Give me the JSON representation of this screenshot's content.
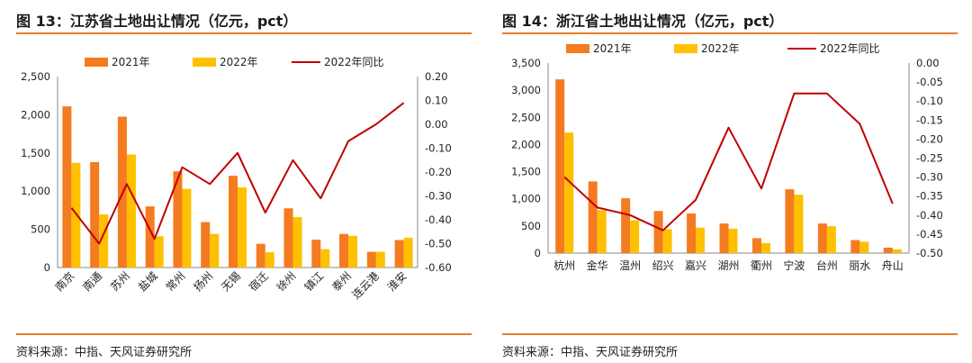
{
  "colors": {
    "series_2021": "#f47b20",
    "series_2022": "#ffc000",
    "yoy_line": "#c00000",
    "accent_rule": "#e87d2a"
  },
  "charts": [
    {
      "title": "图 13：江苏省土地出让情况（亿元，pct）",
      "source": "资料来源：中指、天风证券研究所"
    },
    {
      "title": "图 14：浙江省土地出让情况（亿元，pct）",
      "source": "资料来源：中指、天风证券研究所"
    }
  ],
  "chart_data": [
    {
      "type": "bar",
      "categories": [
        "南京",
        "南通",
        "苏州",
        "盐城",
        "常州",
        "扬州",
        "无锡",
        "宿迁",
        "徐州",
        "镇江",
        "泰州",
        "连云港",
        "淮安"
      ],
      "series": [
        {
          "name": "2021年",
          "type": "bar",
          "axis": "left",
          "values": [
            2110,
            1380,
            1975,
            800,
            1260,
            595,
            1200,
            310,
            775,
            365,
            440,
            205,
            360
          ]
        },
        {
          "name": "2022年",
          "type": "bar",
          "axis": "left",
          "values": [
            1370,
            695,
            1480,
            410,
            1030,
            440,
            1050,
            200,
            660,
            240,
            415,
            205,
            390
          ]
        },
        {
          "name": "2022年同比",
          "type": "line",
          "axis": "right",
          "values": [
            -0.35,
            -0.5,
            -0.25,
            -0.48,
            -0.18,
            -0.25,
            -0.12,
            -0.37,
            -0.15,
            -0.31,
            -0.07,
            0.0,
            0.09
          ]
        }
      ],
      "left_axis": {
        "ylim": [
          0,
          2500
        ],
        "ticks": [
          "0",
          "500",
          "1,000",
          "1,500",
          "2,000",
          "2,500"
        ]
      },
      "right_axis": {
        "ylim": [
          -0.6,
          0.2
        ],
        "ticks": [
          "-0.60",
          "-0.50",
          "-0.40",
          "-0.30",
          "-0.20",
          "-0.10",
          "0.00",
          "0.10",
          "0.20"
        ]
      },
      "legend_position": "top",
      "grid": false
    },
    {
      "type": "bar",
      "categories": [
        "杭州",
        "金华",
        "温州",
        "绍兴",
        "嘉兴",
        "湖州",
        "衢州",
        "宁波",
        "台州",
        "丽水",
        "舟山"
      ],
      "series": [
        {
          "name": "2021年",
          "type": "bar",
          "axis": "left",
          "values": [
            3200,
            1320,
            1010,
            775,
            730,
            545,
            275,
            1175,
            545,
            240,
            100
          ]
        },
        {
          "name": "2022年",
          "type": "bar",
          "axis": "left",
          "values": [
            2220,
            790,
            605,
            440,
            470,
            450,
            185,
            1075,
            495,
            210,
            70
          ]
        },
        {
          "name": "2022年同比",
          "type": "line",
          "axis": "right",
          "values": [
            -0.3,
            -0.38,
            -0.4,
            -0.44,
            -0.36,
            -0.17,
            -0.33,
            -0.08,
            -0.08,
            -0.16,
            -0.37
          ]
        }
      ],
      "left_axis": {
        "ylim": [
          0,
          3500
        ],
        "ticks": [
          "0",
          "500",
          "1,000",
          "1,500",
          "2,000",
          "2,500",
          "3,000",
          "3,500"
        ]
      },
      "right_axis": {
        "ylim": [
          -0.5,
          0.0
        ],
        "ticks": [
          "-0.50",
          "-0.45",
          "-0.40",
          "-0.35",
          "-0.30",
          "-0.25",
          "-0.20",
          "-0.15",
          "-0.10",
          "-0.05",
          "0.00"
        ]
      },
      "legend_position": "top",
      "grid": false
    }
  ]
}
